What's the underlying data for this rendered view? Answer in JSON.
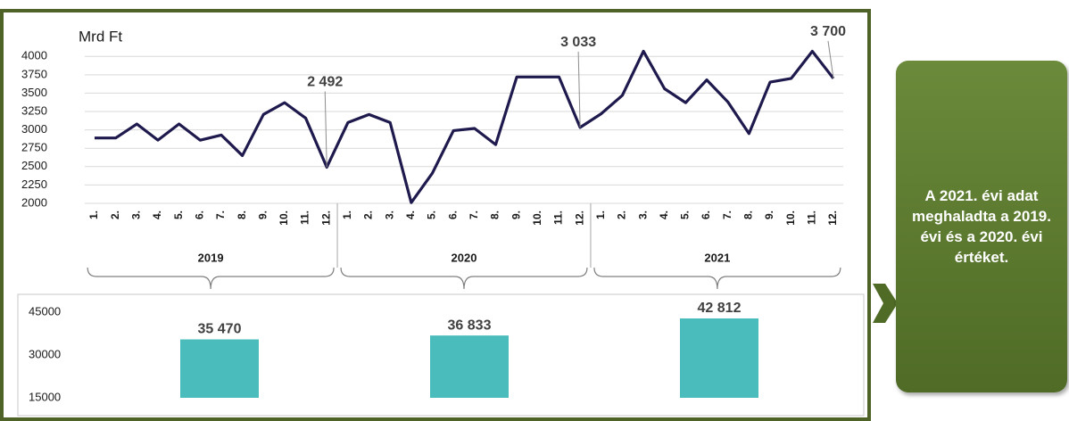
{
  "chart_data": [
    {
      "type": "line",
      "y_label": "Mrd Ft",
      "categories": [
        "1.",
        "2.",
        "3.",
        "4.",
        "5.",
        "6.",
        "7.",
        "8.",
        "9.",
        "10.",
        "11.",
        "12.",
        "1.",
        "2.",
        "3.",
        "4.",
        "5.",
        "6.",
        "7.",
        "8.",
        "9.",
        "10.",
        "11.",
        "12.",
        "1.",
        "2.",
        "3.",
        "4.",
        "5.",
        "6.",
        "7.",
        "8.",
        "9.",
        "10.",
        "11.",
        "12."
      ],
      "groups": [
        "2019",
        "2020",
        "2021"
      ],
      "series": [
        {
          "color": "#1f1a4d",
          "values": [
            2890,
            2890,
            3080,
            2860,
            3080,
            2860,
            2930,
            2650,
            3210,
            3370,
            3160,
            2492,
            3100,
            3210,
            3100,
            2010,
            2410,
            2990,
            3020,
            2800,
            3720,
            3720,
            3720,
            3033,
            3220,
            3470,
            4070,
            3560,
            3370,
            3680,
            3380,
            2950,
            3650,
            3700,
            4070,
            3700
          ],
          "value_labels": [
            null,
            null,
            null,
            null,
            null,
            null,
            null,
            null,
            null,
            null,
            null,
            "2 492",
            null,
            null,
            null,
            null,
            null,
            null,
            null,
            null,
            null,
            null,
            null,
            "3 033",
            null,
            null,
            null,
            null,
            null,
            null,
            null,
            null,
            null,
            null,
            null,
            "3 700"
          ]
        }
      ],
      "ylim": [
        2000,
        4100
      ],
      "yticks": [
        2000,
        2250,
        2500,
        2750,
        3000,
        3250,
        3500,
        3750,
        4000
      ],
      "grid": true
    },
    {
      "type": "bar",
      "color": "#4bbcbc",
      "values": [
        35470,
        36833,
        42812
      ],
      "value_labels": [
        "35 470",
        "36 833",
        "42 812"
      ],
      "ylim": [
        15000,
        50000
      ],
      "yticks": [
        15000,
        30000,
        45000
      ],
      "grid": false
    }
  ],
  "callout": {
    "text": "A 2021. évi adat meghaladta a 2019. évi és a 2020. évi értéket."
  }
}
